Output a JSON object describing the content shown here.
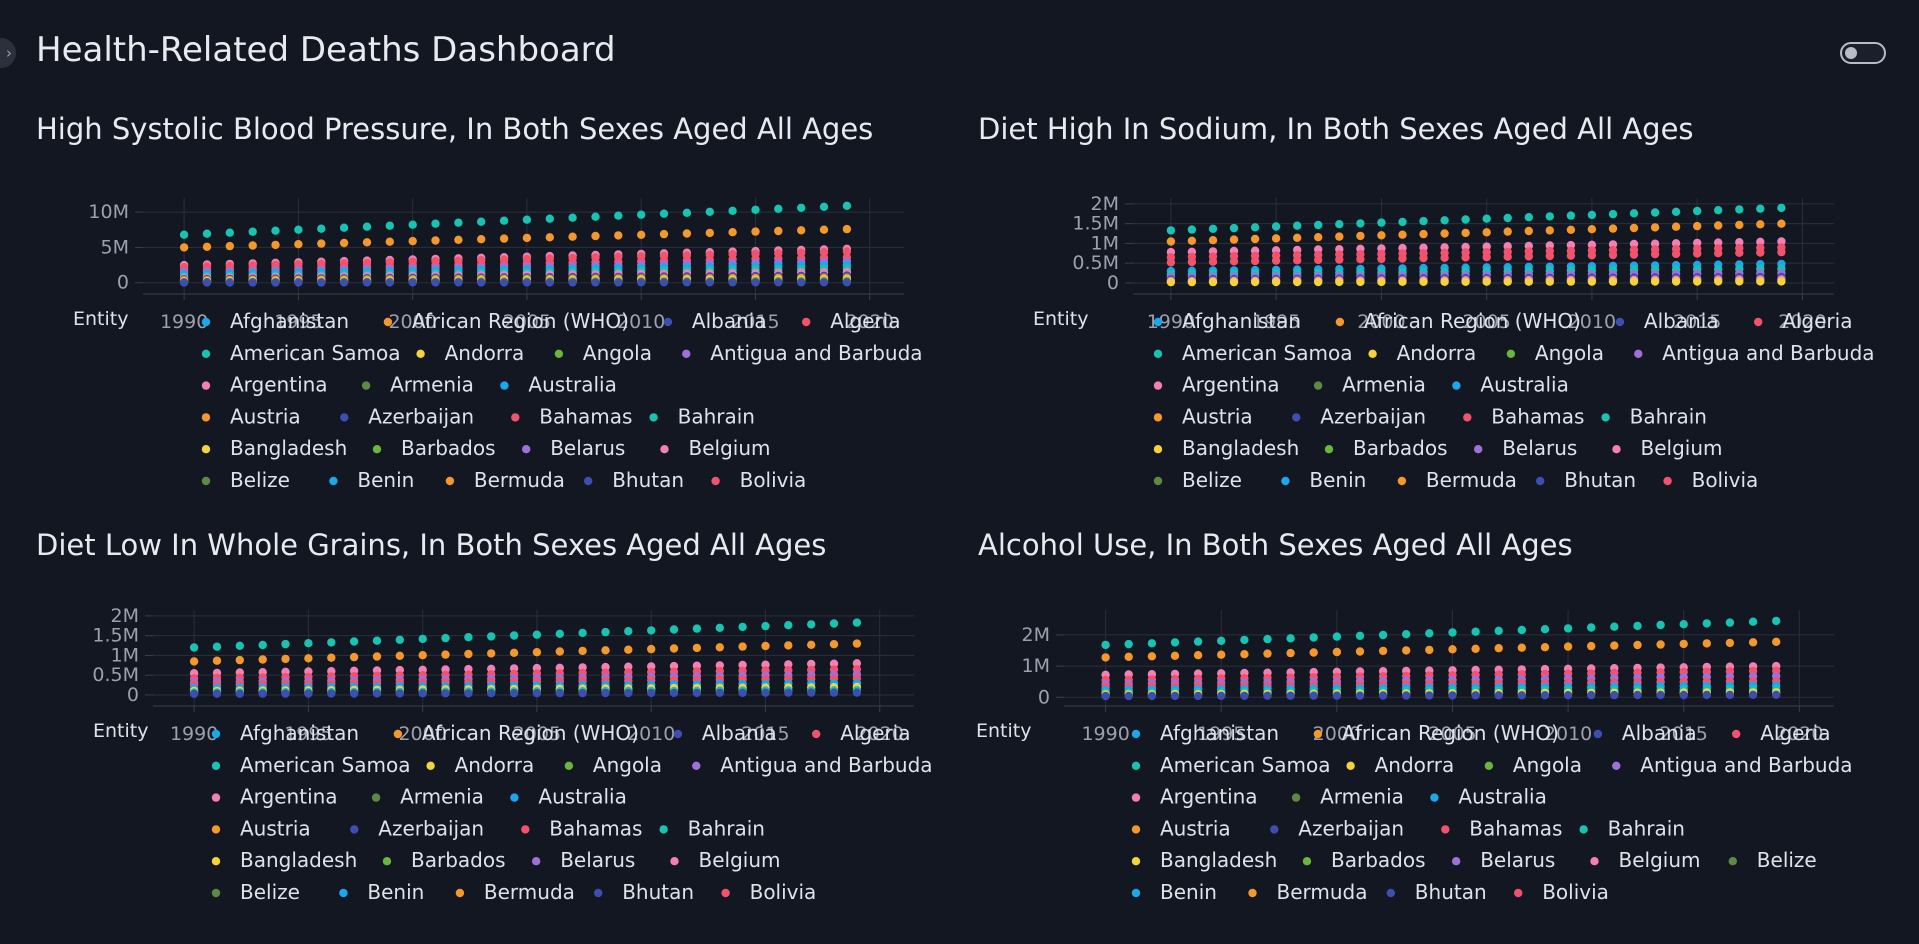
{
  "header": {
    "title": "Health-Related Deaths Dashboard"
  },
  "colors": {
    "background": "#131722",
    "text": "#e8eaef",
    "muted": "#9aa0ad"
  },
  "icons": {
    "sidebar_toggle": "chevron-right-icon",
    "theme_toggle": "toggle-switch-icon"
  },
  "legend_title": "Entity",
  "x_ticks": [
    "1990",
    "1995",
    "2000",
    "2005",
    "2010",
    "2015",
    "2020"
  ],
  "entities": [
    {
      "name": "Afghanistan",
      "color": "#1aa7ec"
    },
    {
      "name": "African Region (WHO)",
      "color": "#f5982b"
    },
    {
      "name": "Albania",
      "color": "#3c4fb0"
    },
    {
      "name": "Algeria",
      "color": "#f0536b"
    },
    {
      "name": "American Samoa",
      "color": "#17c3b2"
    },
    {
      "name": "Andorra",
      "color": "#f6d23c"
    },
    {
      "name": "Angola",
      "color": "#6ab53e"
    },
    {
      "name": "Antigua and Barbuda",
      "color": "#a070d8"
    },
    {
      "name": "Argentina",
      "color": "#f47fb5"
    },
    {
      "name": "Armenia",
      "color": "#5c8a44"
    },
    {
      "name": "Australia",
      "color": "#1aa7ec"
    },
    {
      "name": "Austria",
      "color": "#f5982b"
    },
    {
      "name": "Azerbaijan",
      "color": "#3c4fb0"
    },
    {
      "name": "Bahamas",
      "color": "#f0536b"
    },
    {
      "name": "Bahrain",
      "color": "#17c3b2"
    },
    {
      "name": "Bangladesh",
      "color": "#f6d23c"
    },
    {
      "name": "Barbados",
      "color": "#6ab53e"
    },
    {
      "name": "Belarus",
      "color": "#a070d8"
    },
    {
      "name": "Belgium",
      "color": "#f47fb5"
    },
    {
      "name": "Belize",
      "color": "#5c8a44"
    },
    {
      "name": "Benin",
      "color": "#1aa7ec"
    },
    {
      "name": "Bermuda",
      "color": "#f5982b"
    },
    {
      "name": "Bhutan",
      "color": "#3c4fb0"
    },
    {
      "name": "Bolivia",
      "color": "#f0536b"
    }
  ],
  "panels": [
    {
      "title": "High Systolic Blood Pressure, In Both Sexes Aged All Ages",
      "chart_data": {
        "type": "scatter",
        "x": [
          1990,
          1991,
          1992,
          1993,
          1994,
          1995,
          1996,
          1997,
          1998,
          1999,
          2000,
          2001,
          2002,
          2003,
          2004,
          2005,
          2006,
          2007,
          2008,
          2009,
          2010,
          2011,
          2012,
          2013,
          2014,
          2015,
          2016,
          2017,
          2018,
          2019
        ],
        "yticks": [
          {
            "v": 0,
            "l": "0"
          },
          {
            "v": 5000000,
            "l": "5M"
          },
          {
            "v": 10000000,
            "l": "10M"
          }
        ],
        "ylim": [
          -1600000,
          12000000
        ],
        "xlim": [
          1988.2,
          2021.5
        ],
        "series": [
          {
            "name": "American Samoa",
            "start": 6800000,
            "end": 10900000
          },
          {
            "name": "African Region (WHO)",
            "start": 5000000,
            "end": 7600000
          },
          {
            "name": "Argentina",
            "start": 2500000,
            "end": 4800000
          },
          {
            "name": "Algeria",
            "start": 2200000,
            "end": 4400000
          },
          {
            "name": "Bahamas",
            "start": 1800000,
            "end": 3600000
          },
          {
            "name": "Antigua and Barbuda",
            "start": 1500000,
            "end": 3000000
          },
          {
            "name": "Australia",
            "start": 1200000,
            "end": 2500000
          },
          {
            "name": "Bahrain",
            "start": 900000,
            "end": 2000000
          },
          {
            "name": "Belgium",
            "start": 700000,
            "end": 1500000
          },
          {
            "name": "Azerbaijan",
            "start": 500000,
            "end": 1000000
          },
          {
            "name": "Austria",
            "start": 350000,
            "end": 700000
          },
          {
            "name": "Andorra",
            "start": 200000,
            "end": 450000
          },
          {
            "name": "Angola",
            "start": 100000,
            "end": 250000
          },
          {
            "name": "Albania",
            "start": 30000,
            "end": 60000
          }
        ]
      }
    },
    {
      "title": "Diet High In Sodium, In Both Sexes Aged All Ages",
      "chart_data": {
        "type": "scatter",
        "x": [
          1990,
          1991,
          1992,
          1993,
          1994,
          1995,
          1996,
          1997,
          1998,
          1999,
          2000,
          2001,
          2002,
          2003,
          2004,
          2005,
          2006,
          2007,
          2008,
          2009,
          2010,
          2011,
          2012,
          2013,
          2014,
          2015,
          2016,
          2017,
          2018,
          2019
        ],
        "yticks": [
          {
            "v": 0,
            "l": "0"
          },
          {
            "v": 500000,
            "l": "0.5M"
          },
          {
            "v": 1000000,
            "l": "1M"
          },
          {
            "v": 1500000,
            "l": "1.5M"
          },
          {
            "v": 2000000,
            "l": "2M"
          }
        ],
        "ylim": [
          -280000,
          2150000
        ],
        "xlim": [
          1988.2,
          2021.5
        ],
        "series": [
          {
            "name": "American Samoa",
            "start": 1330000,
            "end": 1900000
          },
          {
            "name": "African Region (WHO)",
            "start": 1050000,
            "end": 1500000
          },
          {
            "name": "Argentina",
            "start": 780000,
            "end": 1050000
          },
          {
            "name": "Algeria",
            "start": 650000,
            "end": 900000
          },
          {
            "name": "Bahamas",
            "start": 520000,
            "end": 780000
          },
          {
            "name": "Australia",
            "start": 300000,
            "end": 480000
          },
          {
            "name": "Bahrain",
            "start": 220000,
            "end": 360000
          },
          {
            "name": "Antigua and Barbuda",
            "start": 150000,
            "end": 250000
          },
          {
            "name": "Azerbaijan",
            "start": 90000,
            "end": 150000
          },
          {
            "name": "Belgium",
            "start": 50000,
            "end": 90000
          },
          {
            "name": "Andorra",
            "start": 20000,
            "end": 40000
          }
        ]
      }
    },
    {
      "title": "Diet Low In Whole Grains, In Both Sexes Aged All Ages",
      "chart_data": {
        "type": "scatter",
        "x": [
          1990,
          1991,
          1992,
          1993,
          1994,
          1995,
          1996,
          1997,
          1998,
          1999,
          2000,
          2001,
          2002,
          2003,
          2004,
          2005,
          2006,
          2007,
          2008,
          2009,
          2010,
          2011,
          2012,
          2013,
          2014,
          2015,
          2016,
          2017,
          2018,
          2019
        ],
        "yticks": [
          {
            "v": 0,
            "l": "0"
          },
          {
            "v": 500000,
            "l": "0.5M"
          },
          {
            "v": 1000000,
            "l": "1M"
          },
          {
            "v": 1500000,
            "l": "1.5M"
          },
          {
            "v": 2000000,
            "l": "2M"
          }
        ],
        "ylim": [
          -280000,
          2150000
        ],
        "xlim": [
          1988.2,
          2021.5
        ],
        "series": [
          {
            "name": "American Samoa",
            "start": 1200000,
            "end": 1830000
          },
          {
            "name": "African Region (WHO)",
            "start": 850000,
            "end": 1300000
          },
          {
            "name": "Argentina",
            "start": 550000,
            "end": 800000
          },
          {
            "name": "Algeria",
            "start": 420000,
            "end": 650000
          },
          {
            "name": "Antigua and Barbuda",
            "start": 320000,
            "end": 520000
          },
          {
            "name": "Bahamas",
            "start": 250000,
            "end": 420000
          },
          {
            "name": "Australia",
            "start": 170000,
            "end": 300000
          },
          {
            "name": "Andorra",
            "start": 100000,
            "end": 200000
          },
          {
            "name": "Bahrain",
            "start": 60000,
            "end": 120000
          },
          {
            "name": "Azerbaijan",
            "start": 30000,
            "end": 60000
          }
        ]
      }
    },
    {
      "title": "Alcohol Use, In Both Sexes Aged All Ages",
      "chart_data": {
        "type": "scatter",
        "x": [
          1990,
          1991,
          1992,
          1993,
          1994,
          1995,
          1996,
          1997,
          1998,
          1999,
          2000,
          2001,
          2002,
          2003,
          2004,
          2005,
          2006,
          2007,
          2008,
          2009,
          2010,
          2011,
          2012,
          2013,
          2014,
          2015,
          2016,
          2017,
          2018,
          2019
        ],
        "yticks": [
          {
            "v": 0,
            "l": "0"
          },
          {
            "v": 1000000,
            "l": "1M"
          },
          {
            "v": 2000000,
            "l": "2M"
          }
        ],
        "ylim": [
          -280000,
          2800000
        ],
        "xlim": [
          1988.2,
          2021.5
        ],
        "series": [
          {
            "name": "American Samoa",
            "start": 1680000,
            "end": 2450000
          },
          {
            "name": "African Region (WHO)",
            "start": 1280000,
            "end": 1780000
          },
          {
            "name": "Argentina",
            "start": 720000,
            "end": 1000000
          },
          {
            "name": "Algeria",
            "start": 550000,
            "end": 850000
          },
          {
            "name": "Antigua and Barbuda",
            "start": 420000,
            "end": 680000
          },
          {
            "name": "Bahamas",
            "start": 320000,
            "end": 520000
          },
          {
            "name": "Australia",
            "start": 230000,
            "end": 380000
          },
          {
            "name": "Bahrain",
            "start": 150000,
            "end": 260000
          },
          {
            "name": "Andorra",
            "start": 90000,
            "end": 160000
          },
          {
            "name": "Azerbaijan",
            "start": 40000,
            "end": 80000
          }
        ]
      }
    }
  ]
}
